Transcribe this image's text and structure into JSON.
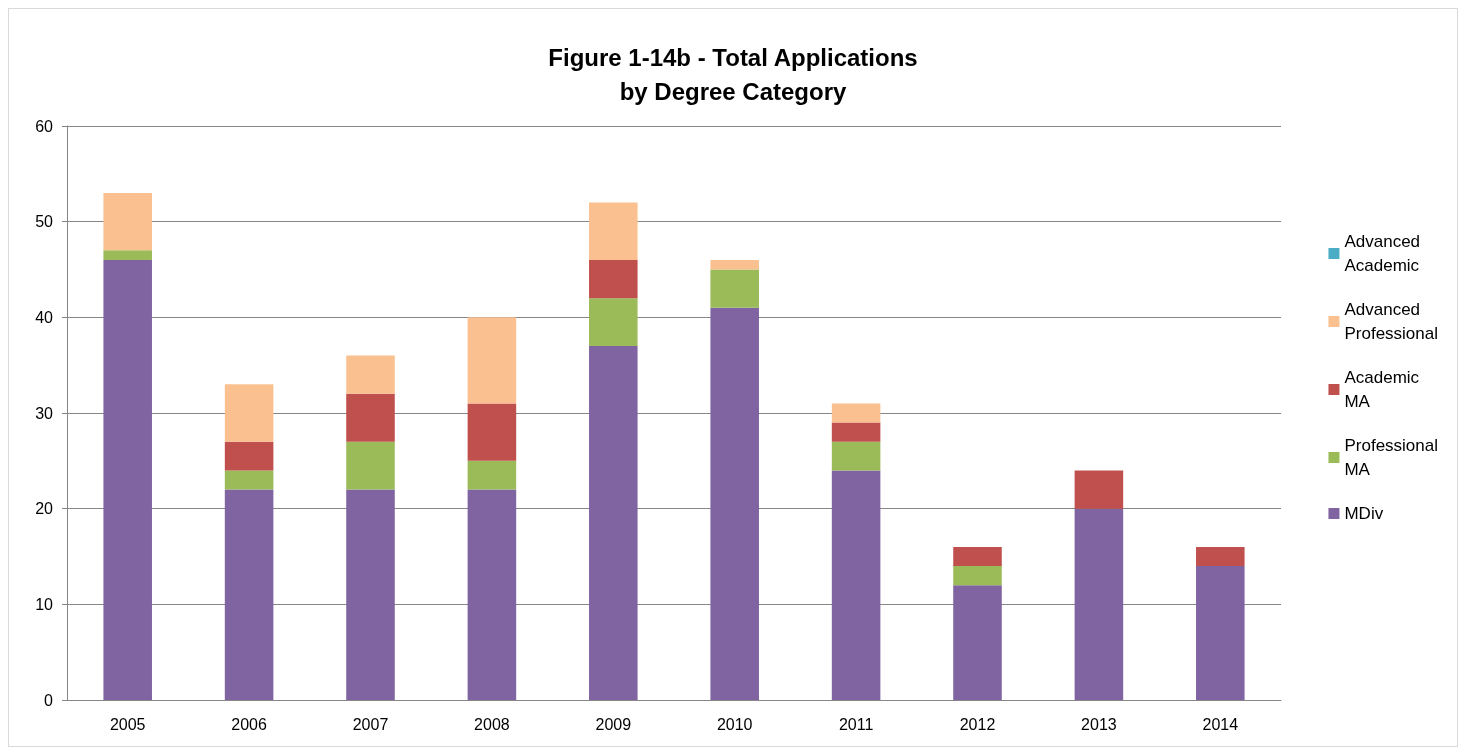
{
  "chart_data": {
    "type": "bar",
    "title": "Figure 1-14b - Total Applications\nby Degree Category",
    "categories": [
      "2005",
      "2006",
      "2007",
      "2008",
      "2009",
      "2010",
      "2011",
      "2012",
      "2013",
      "2014"
    ],
    "series": [
      {
        "name": "MDiv",
        "color": "#8064a2",
        "values": [
          46,
          22,
          22,
          22,
          37,
          41,
          24,
          12,
          20,
          14
        ]
      },
      {
        "name": "Professional MA",
        "color": "#9bbb59",
        "values": [
          1,
          2,
          5,
          3,
          5,
          4,
          3,
          2,
          0,
          0
        ]
      },
      {
        "name": "Academic MA",
        "color": "#c0504d",
        "values": [
          0,
          3,
          5,
          6,
          4,
          0,
          2,
          2,
          4,
          2
        ]
      },
      {
        "name": "Advanced Professional",
        "color": "#fac090",
        "values": [
          6,
          6,
          4,
          9,
          6,
          1,
          2,
          0,
          0,
          0
        ]
      },
      {
        "name": "Advanced Academic",
        "color": "#4bacc6",
        "values": [
          0,
          0,
          0,
          0,
          0,
          0,
          0,
          0,
          0,
          0
        ]
      }
    ],
    "stacked": true,
    "ylim": [
      0,
      60
    ],
    "yticks": [
      0,
      10,
      20,
      30,
      40,
      50,
      60
    ],
    "grid": "y",
    "legend": "right"
  }
}
